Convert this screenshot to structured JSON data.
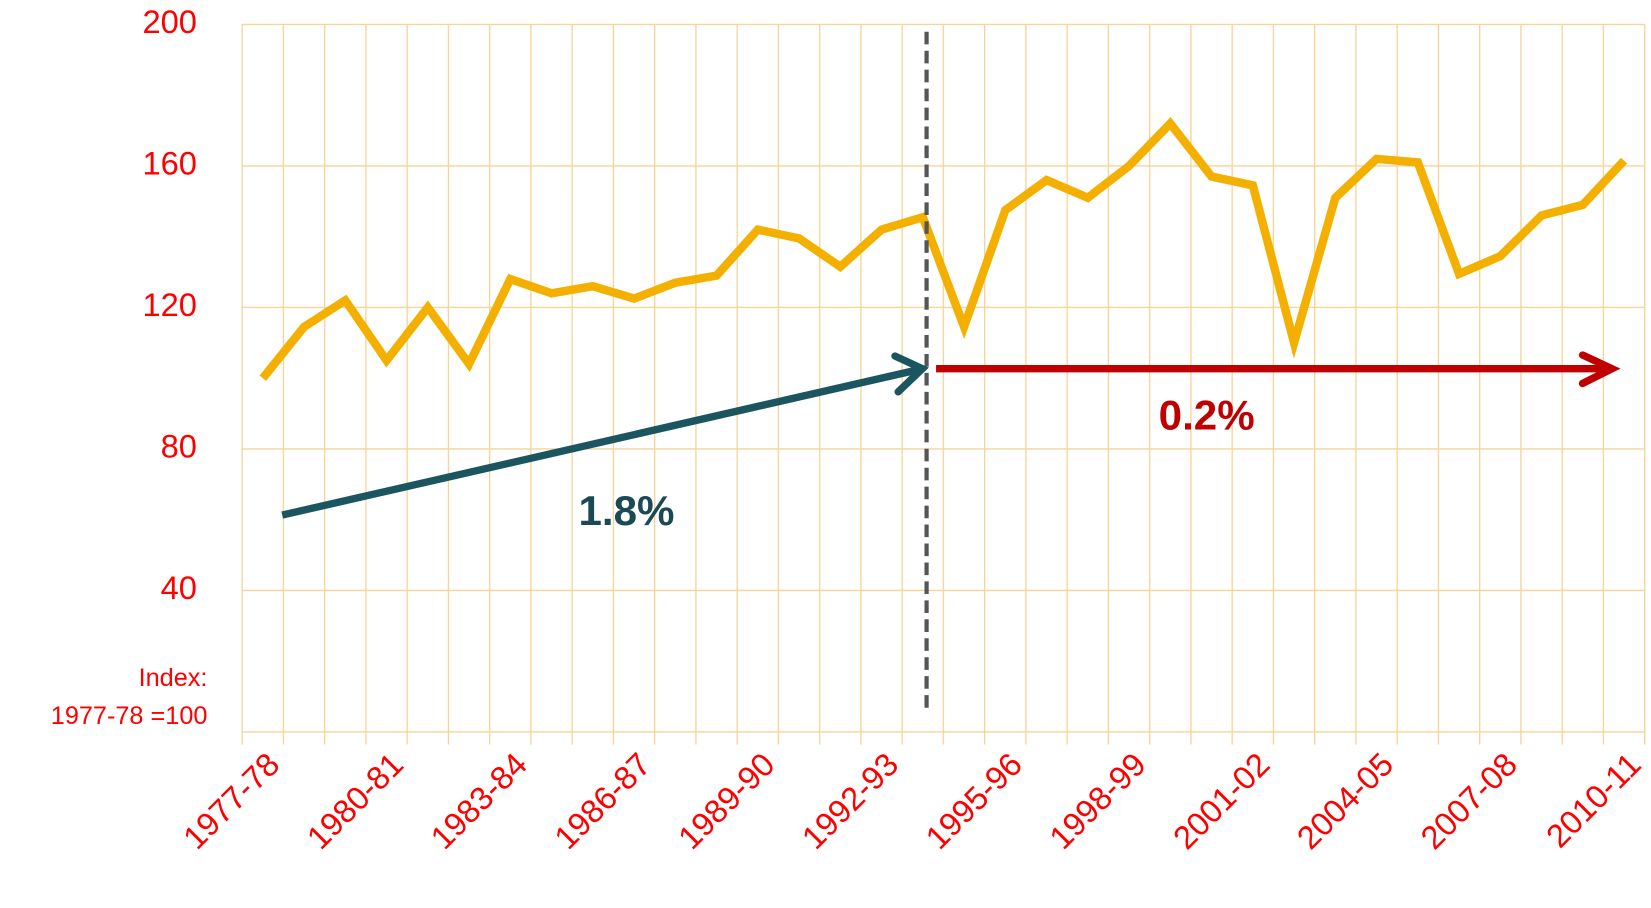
{
  "chart_data": {
    "type": "line",
    "categories": [
      "1977-78",
      null,
      null,
      "1980-81",
      null,
      null,
      "1983-84",
      null,
      null,
      "1986-87",
      null,
      null,
      "1989-90",
      null,
      null,
      "1992-93",
      null,
      null,
      "1995-96",
      null,
      null,
      "1998-99",
      null,
      null,
      "2001-02",
      null,
      null,
      "2004-05",
      null,
      null,
      "2007-08",
      null,
      null,
      "2010-11"
    ],
    "series": [
      {
        "name": "Index",
        "color": "#f4b000",
        "values": [
          100,
          114.5,
          122,
          105,
          120,
          104,
          128,
          124,
          126,
          122.5,
          127,
          129,
          142,
          139.5,
          131.5,
          142,
          145.5,
          114.5,
          147.5,
          156,
          151,
          160,
          172,
          157,
          154.5,
          110,
          151,
          162,
          161,
          129.5,
          134.5,
          146,
          149,
          161.5
        ]
      }
    ],
    "ylim": [
      0,
      200
    ],
    "yticks": [
      40,
      80,
      120,
      160,
      200
    ],
    "grid": true,
    "annotations": {
      "index_line1": "Index:",
      "index_line2": "1977-78 =100",
      "trend_before": "1.8%",
      "trend_after": "0.2%"
    }
  }
}
